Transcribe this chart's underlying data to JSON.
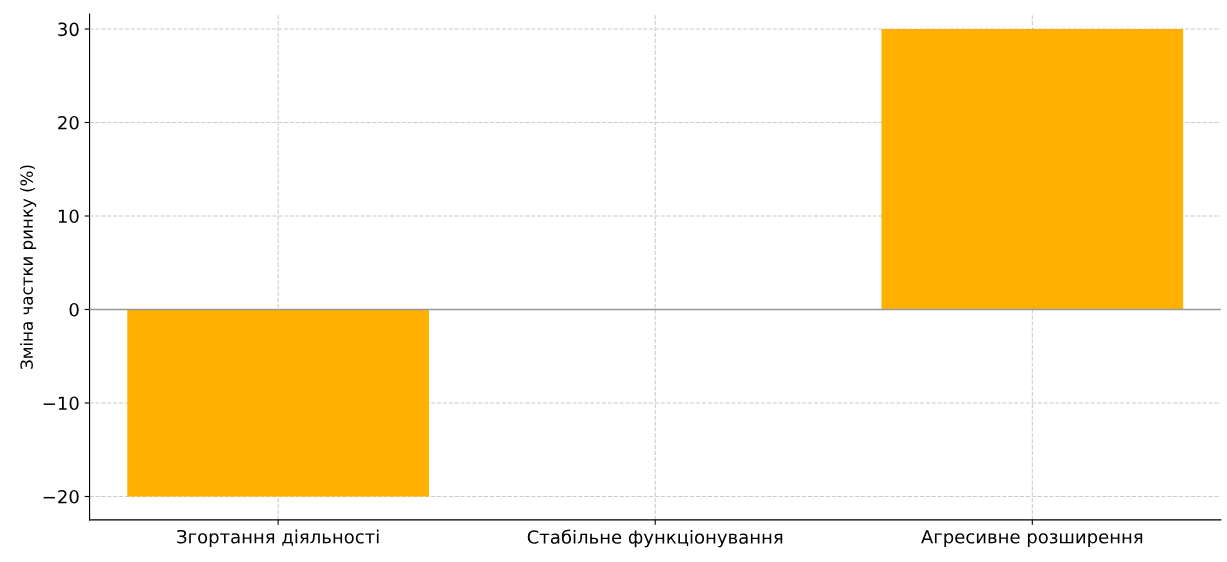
{
  "chart_data": {
    "type": "bar",
    "ylabel": "Зміна частки ринку (%)",
    "categories": [
      "Згортання діяльності",
      "Стабільне функціонування",
      "Агресивне розширення"
    ],
    "values": [
      -20,
      0,
      30
    ],
    "color": "#ffb000",
    "ylim": [
      -22.5,
      31.6
    ],
    "yticks": [
      -20,
      -10,
      0,
      10,
      20,
      30
    ],
    "grid": true,
    "ref_lines": [
      {
        "axis": "y",
        "value": 0,
        "color": "#999999"
      }
    ]
  }
}
